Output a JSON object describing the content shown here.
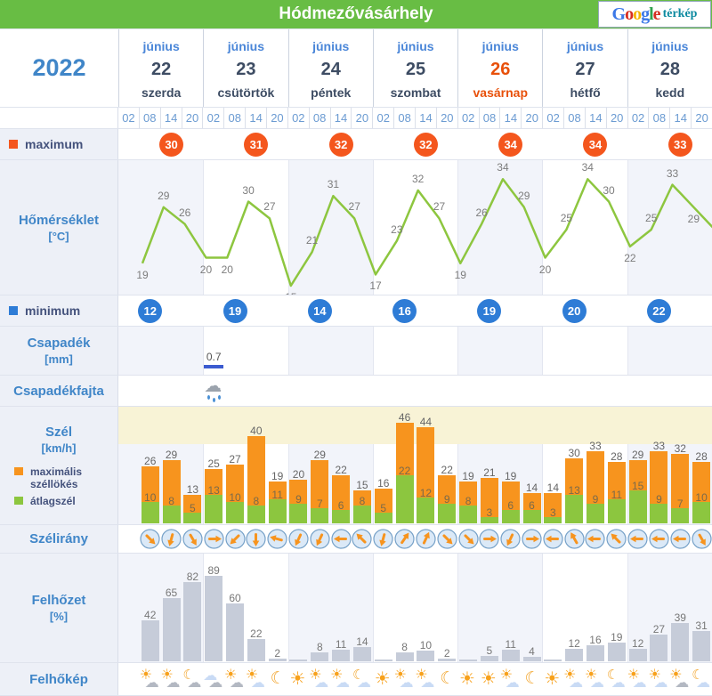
{
  "title": "Hódmezővásárhely",
  "map_link": {
    "brand": "Google",
    "brand_colors": [
      "#3b78e7",
      "#d62d20",
      "#f5b400",
      "#3b78e7",
      "#30a14e",
      "#d62d20"
    ],
    "label": "térkép"
  },
  "year": "2022",
  "month": "június",
  "days": [
    {
      "num": "22",
      "weekday": "szerda",
      "sunday": false
    },
    {
      "num": "23",
      "weekday": "csütörtök",
      "sunday": false
    },
    {
      "num": "24",
      "weekday": "péntek",
      "sunday": false
    },
    {
      "num": "25",
      "weekday": "szombat",
      "sunday": false
    },
    {
      "num": "26",
      "weekday": "vasárnap",
      "sunday": true
    },
    {
      "num": "27",
      "weekday": "hétfő",
      "sunday": false
    },
    {
      "num": "28",
      "weekday": "kedd",
      "sunday": false
    }
  ],
  "times": [
    "02",
    "08",
    "14",
    "20"
  ],
  "maximum": {
    "label": "maximum",
    "values": [
      "30",
      "31",
      "32",
      "32",
      "34",
      "34",
      "33"
    ]
  },
  "minimum": {
    "label": "minimum",
    "values": [
      "12",
      "19",
      "14",
      "16",
      "19",
      "20",
      "22"
    ]
  },
  "temperature": {
    "label": "Hőmérséklet",
    "unit": "[°C]",
    "values": [
      19,
      29,
      26,
      20,
      20,
      30,
      27,
      15,
      21,
      31,
      27,
      17,
      23,
      32,
      27,
      19,
      26,
      34,
      29,
      20,
      25,
      34,
      30,
      22,
      25,
      33,
      29
    ]
  },
  "precipitation": {
    "label": "Csapadék",
    "unit": "[mm]",
    "bars": [
      {
        "slot": 4,
        "label": "0.7",
        "mm": 0.7
      }
    ]
  },
  "precipitation_type": {
    "label": "Csapadékfajta",
    "icons": [
      {
        "slot": 4,
        "type": "rain-cloud"
      }
    ]
  },
  "wind": {
    "label": "Szél",
    "unit": "[km/h]",
    "legend_gust": "maximális széllökés",
    "legend_avg": "átlagszél",
    "first_slot": 1,
    "gust": [
      26,
      29,
      13,
      25,
      27,
      40,
      19,
      20,
      29,
      22,
      15,
      16,
      46,
      44,
      22,
      19,
      21,
      19,
      14,
      14,
      30,
      33,
      28,
      29,
      33,
      32,
      28
    ],
    "avg": [
      10,
      8,
      5,
      13,
      10,
      8,
      11,
      9,
      7,
      6,
      8,
      5,
      22,
      12,
      9,
      8,
      3,
      6,
      6,
      3,
      13,
      9,
      11,
      15,
      9,
      7,
      10
    ]
  },
  "wind_direction": {
    "label": "Szélirány",
    "first_slot": 1,
    "angles_deg_cw_from_east": [
      45,
      105,
      60,
      0,
      135,
      90,
      195,
      115,
      115,
      180,
      225,
      105,
      305,
      295,
      45,
      45,
      0,
      115,
      0,
      180,
      240,
      180,
      225,
      180,
      180,
      180,
      60
    ]
  },
  "cloudiness": {
    "label": "Felhőzet",
    "unit": "[%]",
    "first_slot": 1,
    "values": [
      42,
      65,
      82,
      89,
      60,
      22,
      2,
      1,
      8,
      11,
      14,
      1,
      8,
      10,
      2,
      1,
      5,
      11,
      4,
      1,
      12,
      16,
      19,
      12,
      27,
      39,
      31
    ],
    "labels": [
      "42",
      "65",
      "82",
      "89",
      "60",
      "22",
      "2",
      "",
      "8",
      "11",
      "14",
      "",
      "8",
      "10",
      "2",
      "",
      "5",
      "11",
      "4",
      "",
      "12",
      "16",
      "19",
      "12",
      "27",
      "39",
      "31"
    ]
  },
  "cloud_icons": {
    "label": "Felhőkép",
    "first_slot": 1,
    "icons": [
      "sun-graycloud",
      "sun-graycloud",
      "moon-graycloud",
      "cloud-graycloud",
      "sun-graycloud",
      "sun-cloud",
      "moon",
      "sun",
      "sun-cloud",
      "sun-cloud",
      "moon-cloud",
      "sun",
      "sun-cloud",
      "sun-cloud",
      "moon",
      "sun",
      "sun",
      "sun-cloud",
      "moon",
      "sun",
      "sun-cloud",
      "sun-cloud",
      "moon-cloud",
      "sun-cloud",
      "sun-cloud",
      "sun-graycloud",
      "moon-cloud"
    ]
  },
  "colors": {
    "header_green": "#68bd44",
    "accent_blue": "#4086c8",
    "day_blue": "#4a86d8",
    "sunday_orange": "#e8500a",
    "max_badge": "#f4561d",
    "min_badge": "#2e7cd6",
    "temp_line": "#8dc63f",
    "wind_gust": "#f7941e",
    "wind_avg": "#8cc63f",
    "warning_band": "#f8f3d6",
    "precip_bar": "#3b5bd0",
    "cloud_bar": "#c6ccd9",
    "stripe": "#f2f4fa"
  }
}
